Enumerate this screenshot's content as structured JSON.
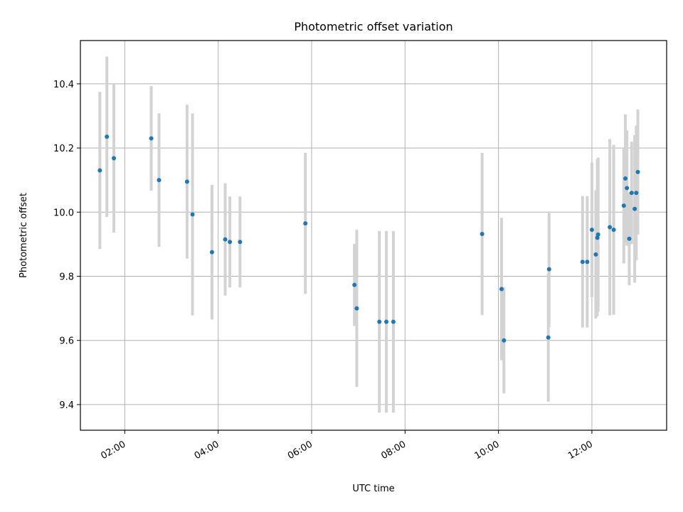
{
  "chart_data": {
    "type": "scatter",
    "title": "Photometric offset variation",
    "xlabel": "UTC time",
    "ylabel": "Photometric offset",
    "x_axis_type": "time",
    "xlim": [
      "01:03",
      "13:36"
    ],
    "ylim": [
      9.32,
      10.535
    ],
    "x_ticks": [
      "02:00",
      "04:00",
      "06:00",
      "08:00",
      "10:00",
      "12:00"
    ],
    "y_ticks": [
      "9.4",
      "9.6",
      "9.8",
      "10.0",
      "10.2",
      "10.4"
    ],
    "grid": true,
    "legend": "none",
    "colors": {
      "marker": "#1f77b4",
      "errorbar": "#d3d3d3",
      "grid": "#b0b0b0"
    },
    "points": [
      {
        "x": "01:28",
        "y": 10.13,
        "err": 0.245
      },
      {
        "x": "01:37",
        "y": 10.235,
        "err": 0.25
      },
      {
        "x": "01:46",
        "y": 10.168,
        "err": 0.232
      },
      {
        "x": "02:34",
        "y": 10.23,
        "err": 0.163
      },
      {
        "x": "02:44",
        "y": 10.1,
        "err": 0.208
      },
      {
        "x": "03:20",
        "y": 10.095,
        "err": 0.24
      },
      {
        "x": "03:27",
        "y": 9.993,
        "err": 0.315
      },
      {
        "x": "03:52",
        "y": 9.875,
        "err": 0.21
      },
      {
        "x": "04:09",
        "y": 9.915,
        "err": 0.175
      },
      {
        "x": "04:15",
        "y": 9.907,
        "err": 0.142
      },
      {
        "x": "04:28",
        "y": 9.907,
        "err": 0.142
      },
      {
        "x": "05:52",
        "y": 9.965,
        "err": 0.22
      },
      {
        "x": "06:55",
        "y": 9.773,
        "err": 0.128
      },
      {
        "x": "06:58",
        "y": 9.7,
        "err": 0.245
      },
      {
        "x": "07:27",
        "y": 9.658,
        "err": 0.283
      },
      {
        "x": "07:36",
        "y": 9.658,
        "err": 0.283
      },
      {
        "x": "07:45",
        "y": 9.658,
        "err": 0.283
      },
      {
        "x": "09:39",
        "y": 9.932,
        "err": 0.253
      },
      {
        "x": "10:04",
        "y": 9.76,
        "err": 0.222
      },
      {
        "x": "10:07",
        "y": 9.6,
        "err": 0.165
      },
      {
        "x": "11:04",
        "y": 9.609,
        "err": 0.2
      },
      {
        "x": "11:05",
        "y": 9.822,
        "err": 0.18
      },
      {
        "x": "11:48",
        "y": 9.845,
        "err": 0.205
      },
      {
        "x": "11:54",
        "y": 9.845,
        "err": 0.205
      },
      {
        "x": "12:00",
        "y": 9.945,
        "err": 0.21
      },
      {
        "x": "12:05",
        "y": 9.868,
        "err": 0.2
      },
      {
        "x": "12:07",
        "y": 9.92,
        "err": 0.245
      },
      {
        "x": "12:08",
        "y": 9.93,
        "err": 0.24
      },
      {
        "x": "12:23",
        "y": 9.953,
        "err": 0.275
      },
      {
        "x": "12:28",
        "y": 9.945,
        "err": 0.265
      },
      {
        "x": "12:41",
        "y": 10.02,
        "err": 0.18
      },
      {
        "x": "12:43",
        "y": 10.105,
        "err": 0.2
      },
      {
        "x": "12:45",
        "y": 10.075,
        "err": 0.18
      },
      {
        "x": "12:48",
        "y": 9.917,
        "err": 0.145
      },
      {
        "x": "12:51",
        "y": 10.06,
        "err": 0.16
      },
      {
        "x": "12:55",
        "y": 10.01,
        "err": 0.23
      },
      {
        "x": "12:57",
        "y": 10.06,
        "err": 0.21
      },
      {
        "x": "12:59",
        "y": 10.125,
        "err": 0.195
      }
    ]
  }
}
